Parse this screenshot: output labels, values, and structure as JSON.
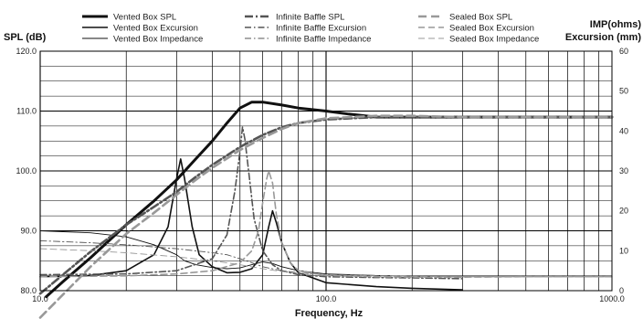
{
  "chart_data": {
    "type": "line",
    "title": "",
    "xlabel": "Frequency, Hz",
    "ylabel_left": "SPL (dB)",
    "ylabel_right_line1": "IMP(ohms)",
    "ylabel_right_line2": "Excursion (mm)",
    "x_scale": "log",
    "xlim": [
      10,
      1000
    ],
    "ylim_left": [
      80,
      120
    ],
    "ylim_right": [
      0,
      60
    ],
    "x_ticks": [
      {
        "value": 10,
        "label": "10.0"
      },
      {
        "value": 100,
        "label": "100.0"
      },
      {
        "value": 1000,
        "label": "1000.0"
      }
    ],
    "y_ticks_left": [
      {
        "value": 80,
        "label": "80.0"
      },
      {
        "value": 90,
        "label": "90.0"
      },
      {
        "value": 100,
        "label": "100.0"
      },
      {
        "value": 110,
        "label": "110.0"
      },
      {
        "value": 120,
        "label": "120.0"
      }
    ],
    "y_ticks_right": [
      {
        "value": 0,
        "label": "0"
      },
      {
        "value": 10,
        "label": "10"
      },
      {
        "value": 20,
        "label": "20"
      },
      {
        "value": 30,
        "label": "30"
      },
      {
        "value": 40,
        "label": "40"
      },
      {
        "value": 50,
        "label": "50"
      },
      {
        "value": 60,
        "label": "60"
      }
    ],
    "grid": true,
    "legend_position": "top",
    "series": [
      {
        "name": "Vented Box SPL",
        "axis": "left",
        "color": "#111111",
        "style": "solid",
        "width": 3,
        "x": [
          10.5,
          12,
          15,
          20,
          25,
          30,
          35,
          40,
          45,
          50,
          55,
          60,
          70,
          80,
          100,
          120,
          150,
          200,
          300,
          500,
          1000
        ],
        "y": [
          79,
          81.5,
          85.5,
          91,
          95,
          98.5,
          102,
          105,
          108,
          110.5,
          111.5,
          111.5,
          111,
          110.5,
          110,
          109.5,
          109,
          109,
          109,
          109,
          109
        ]
      },
      {
        "name": "Vented Box Excursion",
        "axis": "right",
        "color": "#111111",
        "style": "solid",
        "width": 1.6,
        "x": [
          10,
          15,
          20,
          25,
          28,
          30,
          31,
          32,
          34,
          36,
          40,
          45,
          50,
          55,
          60,
          63,
          65,
          67,
          70,
          75,
          80,
          100,
          150,
          200,
          300
        ],
        "y": [
          3.5,
          3.8,
          5,
          9,
          16,
          28,
          33,
          28,
          16,
          9,
          6,
          4.5,
          4.6,
          5.5,
          9,
          16,
          20,
          17,
          12,
          7,
          4.5,
          2,
          1,
          0.6,
          0.2
        ]
      },
      {
        "name": "Vented Box Impedance",
        "axis": "right",
        "color": "#111111",
        "style": "solid",
        "width": 0.9,
        "x": [
          10,
          15,
          20,
          25,
          30,
          32,
          35,
          40,
          45,
          50,
          55,
          60,
          65,
          70,
          80,
          100,
          150,
          200,
          300,
          500,
          1000
        ],
        "y": [
          15,
          14.5,
          13.5,
          11.5,
          9,
          7.5,
          6.5,
          5.8,
          5.5,
          5.7,
          6.5,
          7.2,
          6.8,
          6,
          5,
          4.2,
          3.8,
          3.6,
          3.5,
          3.5,
          3.5
        ]
      },
      {
        "name": "Infinite Baffle SPL",
        "axis": "left",
        "color": "#555555",
        "style": "dashdot",
        "width": 2.6,
        "x": [
          10,
          15,
          20,
          25,
          30,
          35,
          40,
          50,
          60,
          70,
          80,
          100,
          150,
          200,
          300,
          500,
          1000
        ],
        "y": [
          79.5,
          86.5,
          91,
          94,
          96.5,
          99,
          101,
          104,
          106,
          107.3,
          108,
          108.6,
          109,
          109,
          109,
          109,
          109
        ]
      },
      {
        "name": "Infinite Baffle Excursion",
        "axis": "right",
        "color": "#555555",
        "style": "dashdot",
        "width": 1.6,
        "x": [
          10,
          20,
          30,
          40,
          45,
          48,
          50,
          51,
          52,
          54,
          56,
          60,
          65,
          70,
          80,
          100,
          150,
          200,
          300
        ],
        "y": [
          4,
          4.2,
          5,
          8,
          14,
          25,
          35,
          41,
          38,
          28,
          18,
          10,
          6.5,
          5,
          4,
          3.5,
          3.3,
          3.2,
          3
        ]
      },
      {
        "name": "Infinite Baffle Impedance",
        "axis": "right",
        "color": "#555555",
        "style": "dashdot",
        "width": 0.9,
        "x": [
          10,
          15,
          20,
          30,
          40,
          45,
          50,
          55,
          60,
          70,
          80,
          100,
          150,
          200,
          300,
          500,
          1000
        ],
        "y": [
          12.5,
          12,
          11.5,
          10.5,
          9.5,
          9,
          8,
          7,
          6,
          5,
          4.5,
          4,
          3.8,
          3.6,
          3.5,
          3.5,
          3.5
        ]
      },
      {
        "name": "Sealed Box SPL",
        "axis": "left",
        "color": "#999999",
        "style": "dashed",
        "width": 2.6,
        "x": [
          10,
          15,
          20,
          25,
          30,
          35,
          40,
          50,
          60,
          70,
          80,
          100,
          150,
          200,
          300,
          500,
          1000
        ],
        "y": [
          75.5,
          84,
          89.5,
          93,
          96,
          98.5,
          100.5,
          103.5,
          105.5,
          107,
          108,
          108.8,
          109.2,
          109.2,
          109,
          109,
          109
        ]
      },
      {
        "name": "Sealed Box Excursion",
        "axis": "right",
        "color": "#999999",
        "style": "dashed",
        "width": 1.6,
        "x": [
          10,
          20,
          30,
          40,
          50,
          55,
          58,
          60,
          62,
          63,
          65,
          67,
          70,
          75,
          80,
          100,
          150,
          200,
          300,
          500,
          1000
        ],
        "y": [
          3.5,
          3.7,
          4.2,
          5,
          7,
          10,
          15,
          22,
          28,
          30,
          27,
          19,
          12,
          7,
          5,
          3.8,
          3.5,
          3.4,
          3.4,
          3.5,
          3.5
        ]
      },
      {
        "name": "Sealed Box Impedance",
        "axis": "right",
        "color": "#999999",
        "style": "dashed",
        "width": 0.9,
        "x": [
          10,
          15,
          20,
          30,
          40,
          50,
          60,
          70,
          80,
          100,
          150,
          200,
          300,
          500,
          1000
        ],
        "y": [
          10.5,
          10,
          9.5,
          8.5,
          7.5,
          6.5,
          5.5,
          4.8,
          4.4,
          4,
          3.7,
          3.6,
          3.5,
          3.5,
          3.5
        ]
      }
    ]
  }
}
